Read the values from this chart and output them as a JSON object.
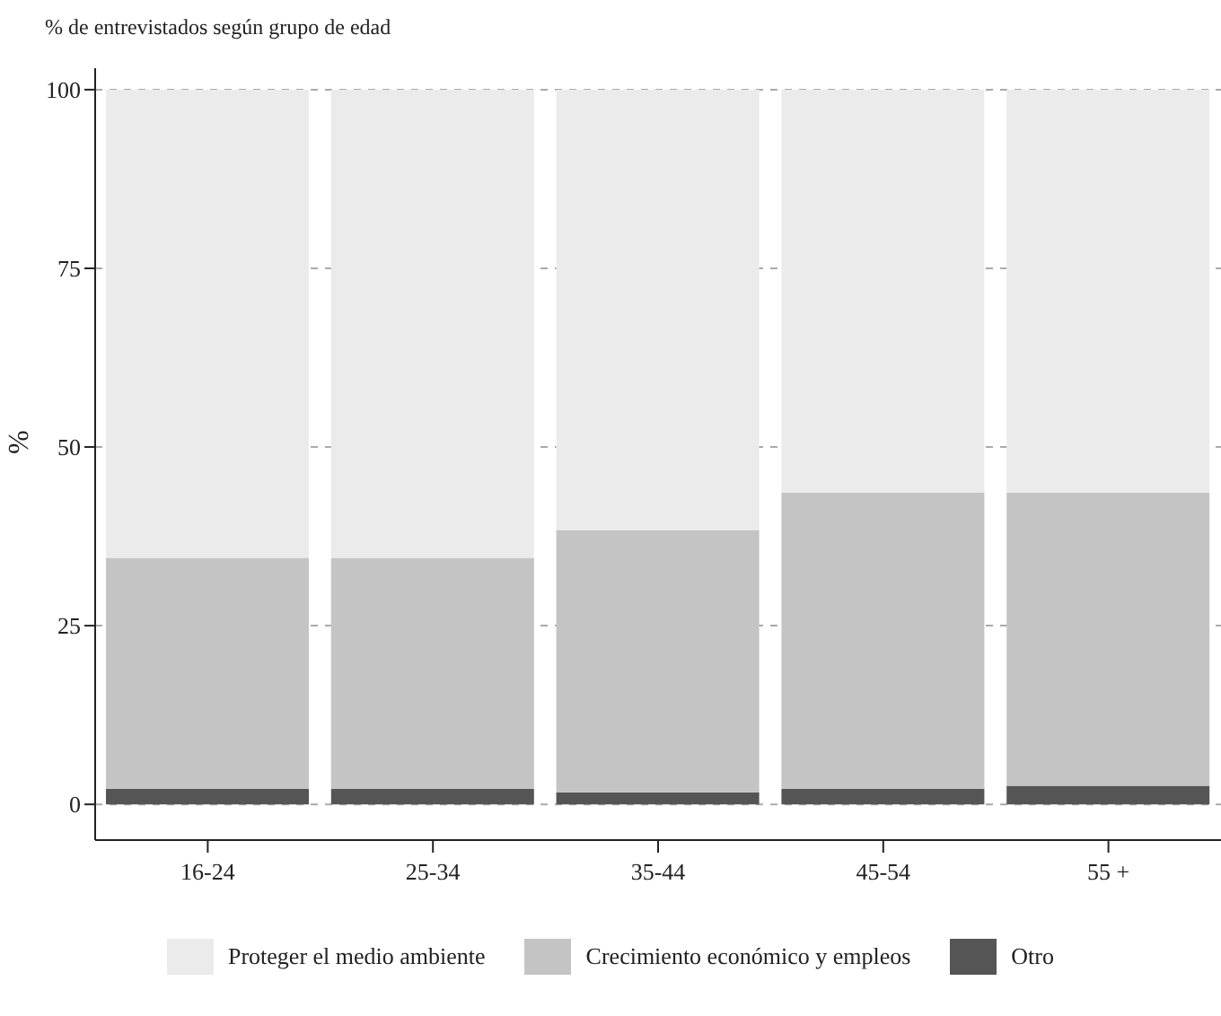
{
  "chart_data": {
    "type": "bar",
    "title": "% de entrevistados según grupo de edad",
    "ylabel": "%",
    "stacked": true,
    "categories": [
      "16-24",
      "25-34",
      "35-44",
      "45-54",
      "55 +"
    ],
    "series": [
      {
        "name": "Otro",
        "color": "#555555",
        "values": [
          2.2,
          2.2,
          1.7,
          2.2,
          2.6
        ]
      },
      {
        "name": "Crecimiento económico y empleos",
        "color": "#c4c4c4",
        "values": [
          32.3,
          32.3,
          36.7,
          41.4,
          41.0
        ]
      },
      {
        "name": "Proteger el medio ambiente",
        "color": "#ebebeb",
        "values": [
          65.5,
          65.5,
          61.6,
          56.4,
          56.4
        ]
      }
    ],
    "ylim": [
      -5,
      103
    ],
    "yticks": [
      0,
      25,
      50,
      75,
      100
    ],
    "grid": "y",
    "legend": "bottom"
  }
}
